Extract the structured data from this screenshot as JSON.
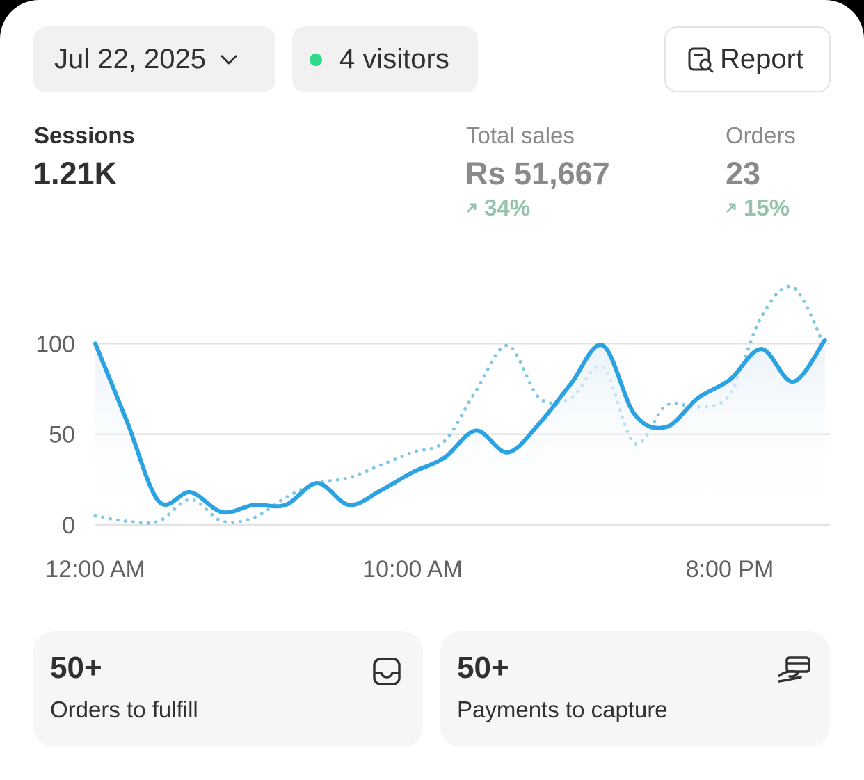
{
  "header": {
    "date": "Jul 22, 2025",
    "visitors": "4 visitors",
    "report": "Report"
  },
  "metrics": [
    {
      "label": "Sessions",
      "value": "1.21K"
    },
    {
      "label": "Total sales",
      "value": "Rs 51,667",
      "change": "34%"
    },
    {
      "label": "Orders",
      "value": "23",
      "change": "15%"
    }
  ],
  "chart": {
    "type": "line",
    "categories": [
      "12:00 AM",
      null,
      null,
      null,
      null,
      null,
      null,
      null,
      null,
      null,
      "10:00 AM",
      null,
      null,
      null,
      null,
      null,
      null,
      null,
      null,
      null,
      "8:00 PM",
      null,
      null,
      null
    ],
    "series": [
      {
        "color": "#2ba3e3",
        "style": "solid",
        "values": [
          100,
          57,
          13,
          18,
          7,
          11,
          11,
          23,
          11,
          19,
          29,
          37,
          52,
          40,
          56,
          78,
          99,
          61,
          54,
          70,
          80,
          97,
          79,
          102
        ]
      },
      {
        "color": "#7cc6e6",
        "style": "dotted",
        "values": [
          5,
          2,
          2,
          14,
          2,
          4,
          15,
          23,
          26,
          33,
          40,
          46,
          74,
          99,
          70,
          70,
          87,
          45,
          66,
          65,
          72,
          115,
          131,
          98
        ]
      }
    ],
    "ylim": [
      0,
      140
    ],
    "yticks": [
      0,
      50,
      100
    ],
    "grid": true
  },
  "cards": [
    {
      "value": "50+",
      "label": "Orders to fulfill"
    },
    {
      "value": "50+",
      "label": "Payments to capture"
    }
  ]
}
